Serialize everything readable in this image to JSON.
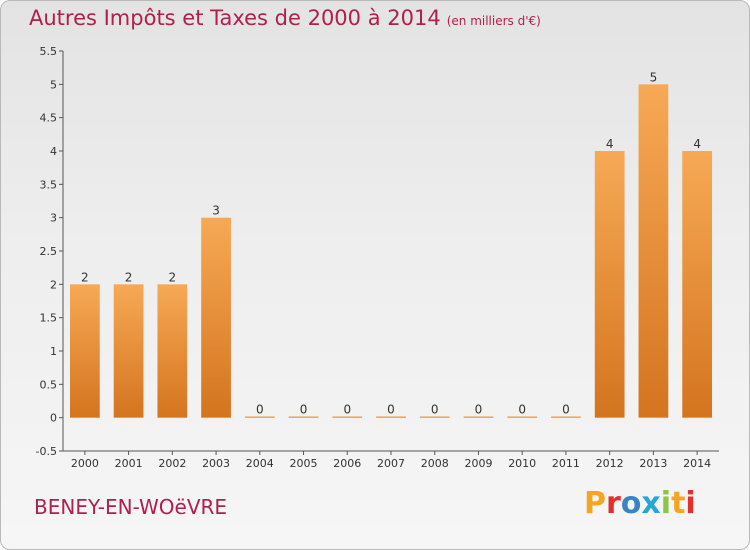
{
  "header": {
    "title": "Autres Impôts et Taxes de 2000 à 2014",
    "unit": "(en milliers d'€)"
  },
  "footer": {
    "town": "BENEY-EN-WOëVRE",
    "logo": "Proxiti"
  },
  "colors": {
    "bar_light": "#f7a955",
    "bar_dark": "#d4741f",
    "title": "#b0204e"
  },
  "chart_data": {
    "type": "bar",
    "title": "Autres Impôts et Taxes de 2000 à 2014",
    "xlabel": "",
    "ylabel": "",
    "categories": [
      "2000",
      "2001",
      "2002",
      "2003",
      "2004",
      "2005",
      "2006",
      "2007",
      "2008",
      "2009",
      "2010",
      "2011",
      "2012",
      "2013",
      "2014"
    ],
    "values": [
      2,
      2,
      2,
      3,
      0,
      0,
      0,
      0,
      0,
      0,
      0,
      0,
      4,
      5,
      4
    ],
    "value_labels": [
      "2",
      "2",
      "2",
      "3",
      "0",
      "0",
      "0",
      "0",
      "0",
      "0",
      "0",
      "0",
      "4",
      "5",
      "4"
    ],
    "ylim": [
      -0.5,
      5.5
    ],
    "yticks": [
      "-0.5",
      "0",
      "0.5",
      "1",
      "1.5",
      "2",
      "2.5",
      "3",
      "3.5",
      "4",
      "4.5",
      "5",
      "5.5"
    ],
    "grid": false,
    "legend": "none"
  }
}
